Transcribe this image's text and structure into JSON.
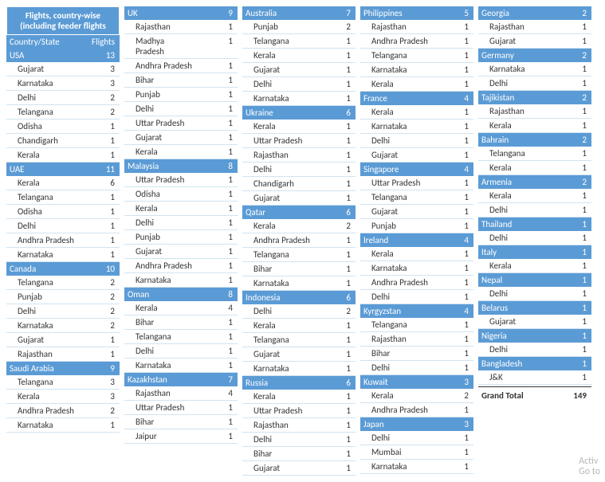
{
  "title_line1": "Flights, country-wise",
  "title_line2": "(including feeder flights",
  "header_state": "Country/State",
  "header_count": "Flights",
  "grand_total_label": "Grand Total",
  "grand_total_value": 149,
  "watermark_line1": "Activ",
  "watermark_line2": "Go to",
  "columns": [
    [
      {
        "t": "country",
        "name": "USA",
        "count": 13
      },
      {
        "t": "state",
        "name": "Gujarat",
        "count": 3
      },
      {
        "t": "state",
        "name": "Karnataka",
        "count": 3
      },
      {
        "t": "state",
        "name": "Delhi",
        "count": 2
      },
      {
        "t": "state",
        "name": "Telangana",
        "count": 2
      },
      {
        "t": "state",
        "name": "Odisha",
        "count": 1
      },
      {
        "t": "state",
        "name": "Chandigarh",
        "count": 1
      },
      {
        "t": "state",
        "name": "Kerala",
        "count": 1
      },
      {
        "t": "country",
        "name": "UAE",
        "count": 11
      },
      {
        "t": "state",
        "name": "Kerala",
        "count": 6
      },
      {
        "t": "state",
        "name": "Telangana",
        "count": 1
      },
      {
        "t": "state",
        "name": "Odisha",
        "count": 1
      },
      {
        "t": "state",
        "name": "Delhi",
        "count": 1
      },
      {
        "t": "state",
        "name": "Andhra Pradesh",
        "count": 1
      },
      {
        "t": "state",
        "name": "Karnataka",
        "count": 1
      },
      {
        "t": "country",
        "name": "Canada",
        "count": 10
      },
      {
        "t": "state",
        "name": "Telangana",
        "count": 2
      },
      {
        "t": "state",
        "name": "Punjab",
        "count": 2
      },
      {
        "t": "state",
        "name": "Delhi",
        "count": 2
      },
      {
        "t": "state",
        "name": "Karnataka",
        "count": 2
      },
      {
        "t": "state",
        "name": "Gujarat",
        "count": 1
      },
      {
        "t": "state",
        "name": "Rajasthan",
        "count": 1
      },
      {
        "t": "country",
        "name": "Saudi Arabia",
        "count": 9
      },
      {
        "t": "state",
        "name": "Telangana",
        "count": 3
      },
      {
        "t": "state",
        "name": "Kerala",
        "count": 3
      },
      {
        "t": "state",
        "name": "Andhra Pradesh",
        "count": 2
      },
      {
        "t": "state",
        "name": "Karnataka",
        "count": 1
      }
    ],
    [
      {
        "t": "country",
        "name": "UK",
        "count": 9
      },
      {
        "t": "state",
        "name": "Rajasthan",
        "count": 1
      },
      {
        "t": "state",
        "name": "Madhya Pradesh",
        "count": 1
      },
      {
        "t": "state",
        "name": "Andhra Pradesh",
        "count": 1
      },
      {
        "t": "state",
        "name": "Bihar",
        "count": 1
      },
      {
        "t": "state",
        "name": "Punjab",
        "count": 1
      },
      {
        "t": "state",
        "name": "Delhi",
        "count": 1
      },
      {
        "t": "state",
        "name": "Uttar Pradesh",
        "count": 1
      },
      {
        "t": "state",
        "name": "Gujarat",
        "count": 1
      },
      {
        "t": "state",
        "name": "Kerala",
        "count": 1
      },
      {
        "t": "country",
        "name": "Malaysia",
        "count": 8
      },
      {
        "t": "state",
        "name": "Uttar Pradesh",
        "count": 1
      },
      {
        "t": "state",
        "name": "Odisha",
        "count": 1
      },
      {
        "t": "state",
        "name": "Kerala",
        "count": 1
      },
      {
        "t": "state",
        "name": "Delhi",
        "count": 1
      },
      {
        "t": "state",
        "name": "Punjab",
        "count": 1
      },
      {
        "t": "state",
        "name": "Gujarat",
        "count": 1
      },
      {
        "t": "state",
        "name": "Andhra Pradesh",
        "count": 1
      },
      {
        "t": "state",
        "name": "Karnataka",
        "count": 1
      },
      {
        "t": "country",
        "name": "Oman",
        "count": 8
      },
      {
        "t": "state",
        "name": "Kerala",
        "count": 4
      },
      {
        "t": "state",
        "name": "Bihar",
        "count": 1
      },
      {
        "t": "state",
        "name": "Telangana",
        "count": 1
      },
      {
        "t": "state",
        "name": "Delhi",
        "count": 1
      },
      {
        "t": "state",
        "name": "Karnataka",
        "count": 1
      },
      {
        "t": "country",
        "name": "Kazakhstan",
        "count": 7
      },
      {
        "t": "state",
        "name": "Rajasthan",
        "count": 4
      },
      {
        "t": "state",
        "name": "Uttar Pradesh",
        "count": 1
      },
      {
        "t": "state",
        "name": "Bihar",
        "count": 1
      },
      {
        "t": "state",
        "name": "Jaipur",
        "count": 1
      }
    ],
    [
      {
        "t": "country",
        "name": "Australia",
        "count": 7
      },
      {
        "t": "state",
        "name": "Punjab",
        "count": 2
      },
      {
        "t": "state",
        "name": "Telangana",
        "count": 1
      },
      {
        "t": "state",
        "name": "Kerala",
        "count": 1
      },
      {
        "t": "state",
        "name": "Gujarat",
        "count": 1
      },
      {
        "t": "state",
        "name": "Delhi",
        "count": 1
      },
      {
        "t": "state",
        "name": "Karnataka",
        "count": 1
      },
      {
        "t": "country",
        "name": "Ukraine",
        "count": 6
      },
      {
        "t": "state",
        "name": "Kerala",
        "count": 1
      },
      {
        "t": "state",
        "name": "Uttar Pradesh",
        "count": 1
      },
      {
        "t": "state",
        "name": "Rajasthan",
        "count": 1
      },
      {
        "t": "state",
        "name": "Delhi",
        "count": 1
      },
      {
        "t": "state",
        "name": "Chandigarh",
        "count": 1
      },
      {
        "t": "state",
        "name": "Gujarat",
        "count": 1
      },
      {
        "t": "country",
        "name": "Qatar",
        "count": 6
      },
      {
        "t": "state",
        "name": "Kerala",
        "count": 2
      },
      {
        "t": "state",
        "name": "Andhra Pradesh",
        "count": 1
      },
      {
        "t": "state",
        "name": "Telangana",
        "count": 1
      },
      {
        "t": "state",
        "name": "Bihar",
        "count": 1
      },
      {
        "t": "state",
        "name": "Karnataka",
        "count": 1
      },
      {
        "t": "country",
        "name": "Indonesia",
        "count": 6
      },
      {
        "t": "state",
        "name": "Delhi",
        "count": 2
      },
      {
        "t": "state",
        "name": "Kerala",
        "count": 1
      },
      {
        "t": "state",
        "name": "Telangana",
        "count": 1
      },
      {
        "t": "state",
        "name": "Gujarat",
        "count": 1
      },
      {
        "t": "state",
        "name": "Karnataka",
        "count": 1
      },
      {
        "t": "country",
        "name": "Russia",
        "count": 6
      },
      {
        "t": "state",
        "name": "Kerala",
        "count": 1
      },
      {
        "t": "state",
        "name": "Uttar Pradesh",
        "count": 1
      },
      {
        "t": "state",
        "name": "Rajasthan",
        "count": 1
      },
      {
        "t": "state",
        "name": "Delhi",
        "count": 1
      },
      {
        "t": "state",
        "name": "Bihar",
        "count": 1
      },
      {
        "t": "state",
        "name": "Gujarat",
        "count": 1
      }
    ],
    [
      {
        "t": "country",
        "name": "Philippines",
        "count": 5
      },
      {
        "t": "state",
        "name": "Rajasthan",
        "count": 1
      },
      {
        "t": "state",
        "name": "Andhra Pradesh",
        "count": 1
      },
      {
        "t": "state",
        "name": "Telangana",
        "count": 1
      },
      {
        "t": "state",
        "name": "Karnataka",
        "count": 1
      },
      {
        "t": "state",
        "name": "Kerala",
        "count": 1
      },
      {
        "t": "country",
        "name": "France",
        "count": 4
      },
      {
        "t": "state",
        "name": "Kerala",
        "count": 1
      },
      {
        "t": "state",
        "name": "Karnataka",
        "count": 1
      },
      {
        "t": "state",
        "name": "Delhi",
        "count": 1
      },
      {
        "t": "state",
        "name": "Gujarat",
        "count": 1
      },
      {
        "t": "country",
        "name": "Singapore",
        "count": 4
      },
      {
        "t": "state",
        "name": "Uttar Pradesh",
        "count": 1
      },
      {
        "t": "state",
        "name": "Telangana",
        "count": 1
      },
      {
        "t": "state",
        "name": "Gujarat",
        "count": 1
      },
      {
        "t": "state",
        "name": "Punjab",
        "count": 1
      },
      {
        "t": "country",
        "name": "Ireland",
        "count": 4
      },
      {
        "t": "state",
        "name": "Kerala",
        "count": 1
      },
      {
        "t": "state",
        "name": "Karnataka",
        "count": 1
      },
      {
        "t": "state",
        "name": "Andhra Pradesh",
        "count": 1
      },
      {
        "t": "state",
        "name": "Delhi",
        "count": 1
      },
      {
        "t": "country",
        "name": "Kyrgyzstan",
        "count": 4
      },
      {
        "t": "state",
        "name": "Telangana",
        "count": 1
      },
      {
        "t": "state",
        "name": "Rajasthan",
        "count": 1
      },
      {
        "t": "state",
        "name": "Bihar",
        "count": 1
      },
      {
        "t": "state",
        "name": "Delhi",
        "count": 1
      },
      {
        "t": "country",
        "name": "Kuwait",
        "count": 3
      },
      {
        "t": "state",
        "name": "Kerala",
        "count": 2
      },
      {
        "t": "state",
        "name": "Andhra Pradesh",
        "count": 1
      },
      {
        "t": "country",
        "name": "Japan",
        "count": 3
      },
      {
        "t": "state",
        "name": "Delhi",
        "count": 1
      },
      {
        "t": "state",
        "name": "Mumbai",
        "count": 1
      },
      {
        "t": "state",
        "name": "Karnataka",
        "count": 1
      }
    ],
    [
      {
        "t": "country",
        "name": "Georgia",
        "count": 2
      },
      {
        "t": "state",
        "name": "Rajasthan",
        "count": 1
      },
      {
        "t": "state",
        "name": "Gujarat",
        "count": 1
      },
      {
        "t": "country",
        "name": "Germany",
        "count": 2
      },
      {
        "t": "state",
        "name": "Karnataka",
        "count": 1
      },
      {
        "t": "state",
        "name": "Delhi",
        "count": 1
      },
      {
        "t": "country",
        "name": "Tajikistan",
        "count": 2
      },
      {
        "t": "state",
        "name": "Rajasthan",
        "count": 1
      },
      {
        "t": "state",
        "name": "Kerala",
        "count": 1
      },
      {
        "t": "country",
        "name": "Bahrain",
        "count": 2
      },
      {
        "t": "state",
        "name": "Telangana",
        "count": 1
      },
      {
        "t": "state",
        "name": "Kerala",
        "count": 1
      },
      {
        "t": "country",
        "name": "Armenia",
        "count": 2
      },
      {
        "t": "state",
        "name": "Kerala",
        "count": 1
      },
      {
        "t": "state",
        "name": "Delhi",
        "count": 1
      },
      {
        "t": "country",
        "name": "Thailand",
        "count": 1
      },
      {
        "t": "state",
        "name": "Delhi",
        "count": 1
      },
      {
        "t": "country",
        "name": "Italy",
        "count": 1
      },
      {
        "t": "state",
        "name": "Kerala",
        "count": 1
      },
      {
        "t": "country",
        "name": "Nepal",
        "count": 1
      },
      {
        "t": "state",
        "name": "Delhi",
        "count": 1
      },
      {
        "t": "country",
        "name": "Belarus",
        "count": 1
      },
      {
        "t": "state",
        "name": "Gujarat",
        "count": 1
      },
      {
        "t": "country",
        "name": "Nigeria",
        "count": 1
      },
      {
        "t": "state",
        "name": "Delhi",
        "count": 1
      },
      {
        "t": "country",
        "name": "Bangladesh",
        "count": 1
      },
      {
        "t": "state",
        "name": "J&K",
        "count": 1
      }
    ]
  ]
}
